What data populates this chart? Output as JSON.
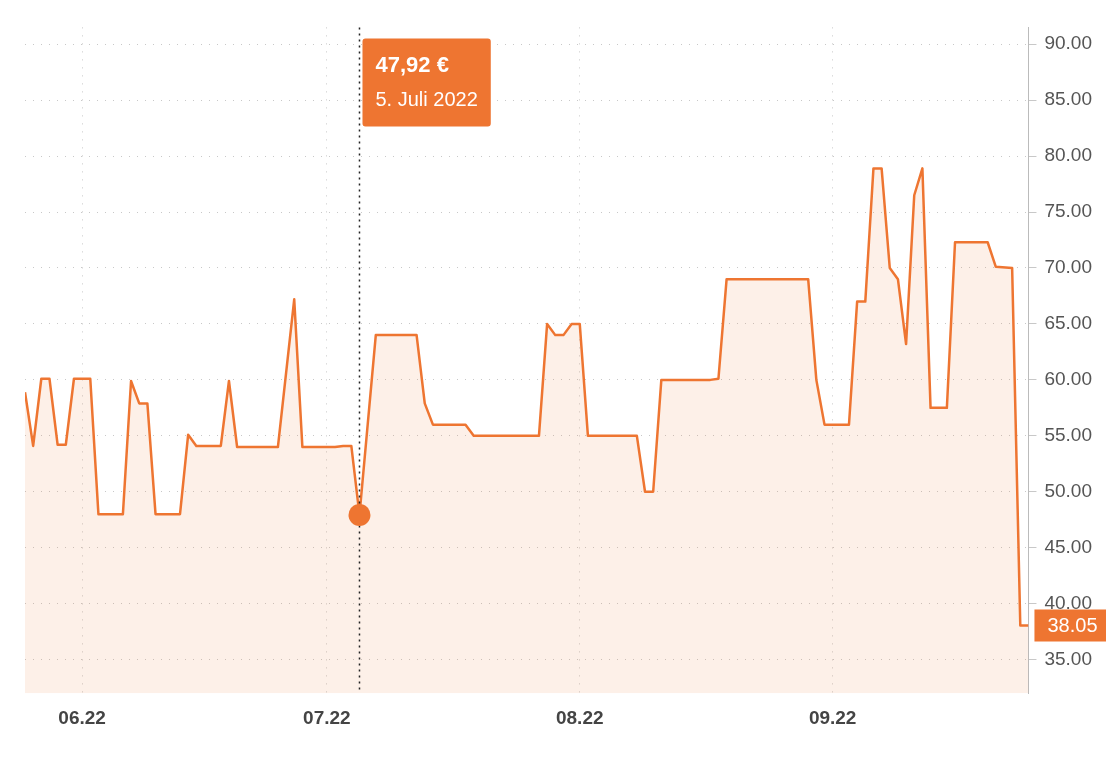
{
  "chart_data": {
    "type": "area",
    "x": [
      "2022-05-25",
      "2022-05-26",
      "2022-05-27",
      "2022-05-28",
      "2022-05-29",
      "2022-05-30",
      "2022-05-31",
      "2022-06-02",
      "2022-06-03",
      "2022-06-06",
      "2022-06-07",
      "2022-06-08",
      "2022-06-09",
      "2022-06-10",
      "2022-06-13",
      "2022-06-14",
      "2022-06-15",
      "2022-06-18",
      "2022-06-19",
      "2022-06-20",
      "2022-06-25",
      "2022-06-27",
      "2022-06-28",
      "2022-07-02",
      "2022-07-03",
      "2022-07-04",
      "2022-07-05",
      "2022-07-07",
      "2022-07-12",
      "2022-07-13",
      "2022-07-14",
      "2022-07-18",
      "2022-07-19",
      "2022-07-27",
      "2022-07-28",
      "2022-07-29",
      "2022-07-30",
      "2022-07-31",
      "2022-08-01",
      "2022-08-02",
      "2022-08-08",
      "2022-08-09",
      "2022-08-10",
      "2022-08-11",
      "2022-08-17",
      "2022-08-18",
      "2022-08-19",
      "2022-08-29",
      "2022-08-30",
      "2022-08-31",
      "2022-09-03",
      "2022-09-04",
      "2022-09-05",
      "2022-09-06",
      "2022-09-07",
      "2022-09-08",
      "2022-09-09",
      "2022-09-10",
      "2022-09-11",
      "2022-09-12",
      "2022-09-13",
      "2022-09-15",
      "2022-09-16",
      "2022-09-20",
      "2022-09-21",
      "2022-09-23",
      "2022-09-24",
      "2022-09-25"
    ],
    "series": [
      {
        "color": "#ee7531",
        "values": [
          58.9,
          54.1,
          60.1,
          60.1,
          54.2,
          54.2,
          60.1,
          60.1,
          48.0,
          48.0,
          59.9,
          57.9,
          57.9,
          48.0,
          48.0,
          55.1,
          54.1,
          54.1,
          59.9,
          54.0,
          54.0,
          67.2,
          54.0,
          54.0,
          54.1,
          54.1,
          47.92,
          64.0,
          64.0,
          57.9,
          56.0,
          56.0,
          55.0,
          55.0,
          65.0,
          64.0,
          64.0,
          65.0,
          65.0,
          55.0,
          55.0,
          50.0,
          50.0,
          60.0,
          60.0,
          60.1,
          69.0,
          69.0,
          60.0,
          56.0,
          56.0,
          67.0,
          67.0,
          78.9,
          78.9,
          70.0,
          69.0,
          63.2,
          76.5,
          78.9,
          57.5,
          57.5,
          72.3,
          72.3,
          70.1,
          70.0,
          38.05,
          38.05
        ]
      }
    ],
    "xlim": [
      "2022-05-25",
      "2022-09-25"
    ],
    "xticks": [
      {
        "value": "2022-06-01",
        "label": "06.22"
      },
      {
        "value": "2022-07-01",
        "label": "07.22"
      },
      {
        "value": "2022-08-01",
        "label": "08.22"
      },
      {
        "value": "2022-09-01",
        "label": "09.22"
      }
    ],
    "ylim": [
      32,
      91.5
    ],
    "yticks": [
      {
        "value": 35,
        "label": "35.00"
      },
      {
        "value": 40,
        "label": "40.00"
      },
      {
        "value": 45,
        "label": "45.00"
      },
      {
        "value": 50,
        "label": "50.00"
      },
      {
        "value": 55,
        "label": "55.00"
      },
      {
        "value": 60,
        "label": "60.00"
      },
      {
        "value": 65,
        "label": "65.00"
      },
      {
        "value": 70,
        "label": "70.00"
      },
      {
        "value": 75,
        "label": "75.00"
      },
      {
        "value": 80,
        "label": "80.00"
      },
      {
        "value": 85,
        "label": "85.00"
      },
      {
        "value": 90,
        "label": "90.00"
      }
    ],
    "ref_lines": [
      {
        "axis": "x",
        "value": "2022-07-05",
        "line_style": "dotted",
        "color": "#222222"
      }
    ],
    "annotations": [
      "47,92 €",
      "5. Juli 2022",
      {
        "text": "38.05",
        "x": "2022-09-25",
        "y": 38.05
      }
    ],
    "grid": true,
    "legend": false,
    "marker": "none",
    "line_style": "solid"
  }
}
